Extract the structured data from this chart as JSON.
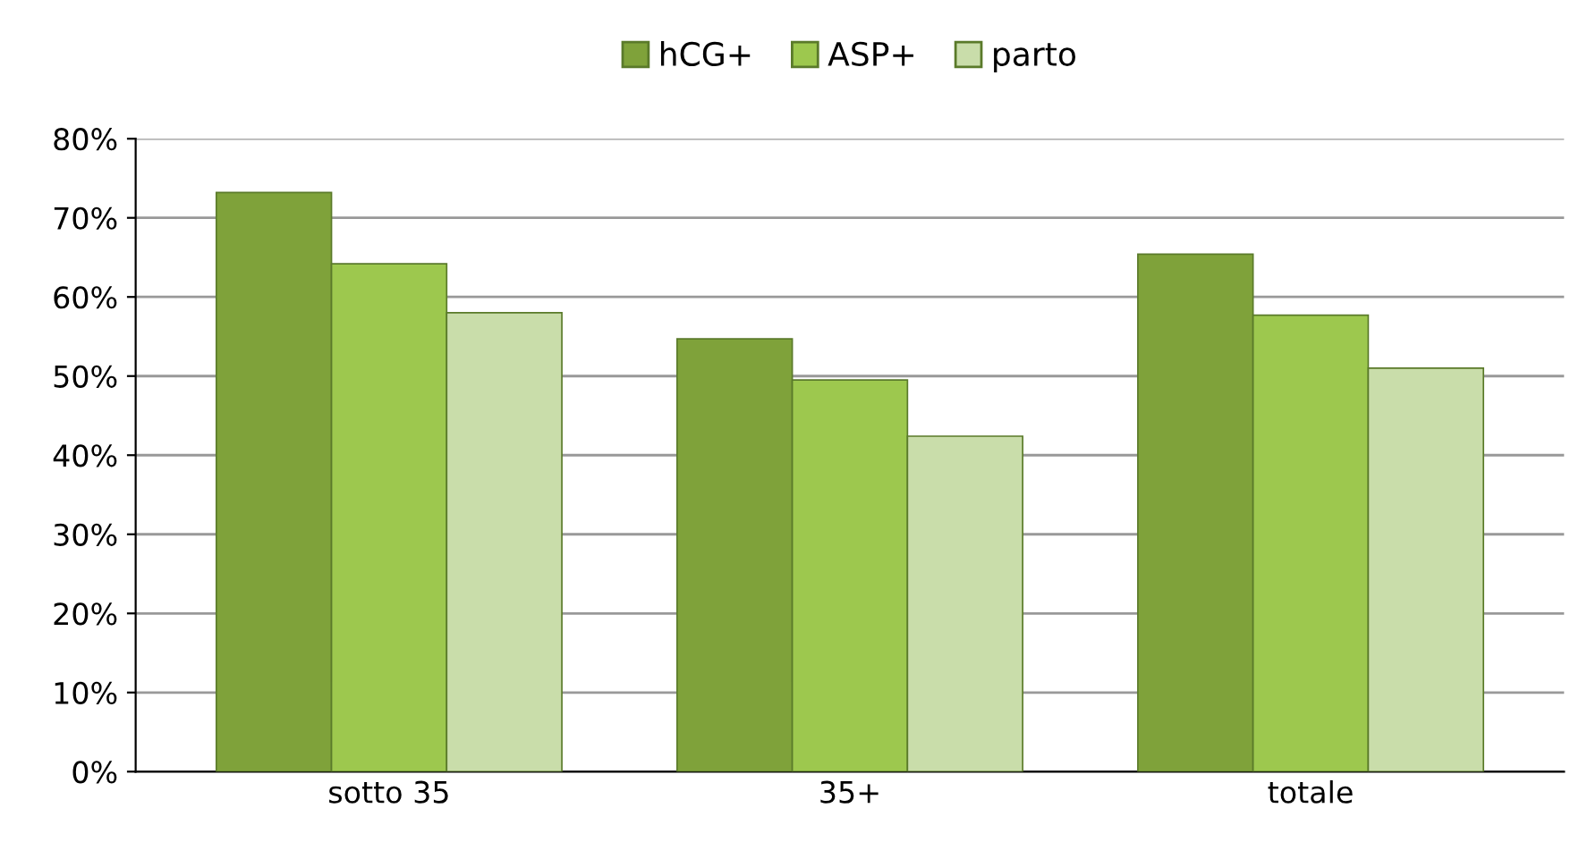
{
  "chart_data": {
    "type": "bar",
    "categories": [
      "sotto 35",
      "35+",
      "totale"
    ],
    "series": [
      {
        "name": "hCG+",
        "color": "#7fa23a",
        "values": [
          73.2,
          54.7,
          65.4
        ]
      },
      {
        "name": "ASP+",
        "color": "#9dc84e",
        "values": [
          64.2,
          49.5,
          57.7
        ]
      },
      {
        "name": "parto",
        "color": "#c9ddaa",
        "values": [
          58.0,
          42.4,
          51.0
        ]
      }
    ],
    "ylim": [
      0,
      80
    ],
    "yticks": [
      {
        "value": 0,
        "label": "0%"
      },
      {
        "value": 10,
        "label": "10%"
      },
      {
        "value": 20,
        "label": "20%"
      },
      {
        "value": 30,
        "label": "30%"
      },
      {
        "value": 40,
        "label": "40%"
      },
      {
        "value": 50,
        "label": "50%"
      },
      {
        "value": 60,
        "label": "60%"
      },
      {
        "value": 70,
        "label": "70%"
      },
      {
        "value": 80,
        "label": "80%"
      }
    ],
    "grid": "y",
    "legend": "top"
  }
}
